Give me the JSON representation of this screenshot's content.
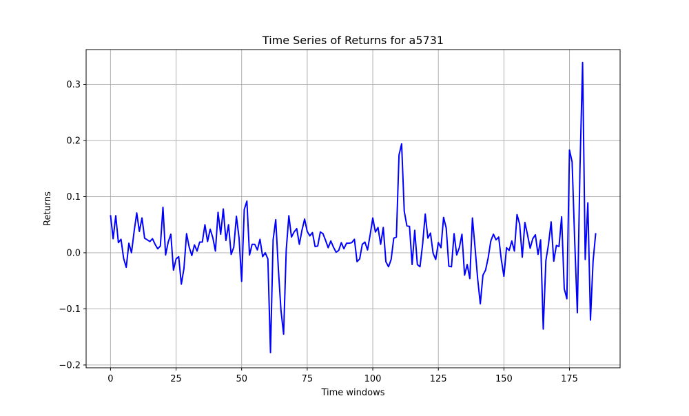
{
  "chart_data": {
    "type": "line",
    "title": "Time Series of Returns for a5731",
    "xlabel": "Time windows",
    "ylabel": "Returns",
    "xlim": [
      -9.3,
      194.3
    ],
    "ylim": [
      -0.205,
      0.362
    ],
    "grid": true,
    "legend": "none",
    "line_color": "#0000ff",
    "x_ticks": [
      0,
      25,
      50,
      75,
      100,
      125,
      150,
      175
    ],
    "y_ticks": [
      -0.2,
      -0.1,
      0.0,
      0.1,
      0.2,
      0.3
    ],
    "x_tick_labels": [
      "0",
      "25",
      "50",
      "75",
      "100",
      "125",
      "150",
      "175"
    ],
    "y_tick_labels": [
      "−0.2",
      "−0.1",
      "0.0",
      "0.1",
      "0.2",
      "0.3"
    ],
    "series": [
      {
        "x_start": 0,
        "values": [
          0.067,
          0.025,
          0.066,
          0.018,
          0.024,
          -0.01,
          -0.026,
          0.017,
          0.0,
          0.038,
          0.071,
          0.038,
          0.062,
          0.026,
          0.023,
          0.02,
          0.025,
          0.015,
          0.007,
          0.012,
          0.081,
          -0.004,
          0.019,
          0.033,
          -0.031,
          -0.011,
          -0.007,
          -0.056,
          -0.028,
          0.034,
          0.01,
          -0.005,
          0.014,
          0.003,
          0.019,
          0.019,
          0.05,
          0.02,
          0.042,
          0.027,
          0.003,
          0.072,
          0.033,
          0.078,
          0.022,
          0.05,
          -0.003,
          0.01,
          0.065,
          0.027,
          -0.051,
          0.077,
          0.092,
          -0.004,
          0.015,
          0.015,
          0.005,
          0.024,
          -0.007,
          0.0,
          -0.011,
          -0.178,
          0.023,
          0.059,
          -0.029,
          -0.103,
          -0.145,
          0.005,
          0.066,
          0.028,
          0.037,
          0.043,
          0.015,
          0.04,
          0.06,
          0.038,
          0.03,
          0.036,
          0.011,
          0.012,
          0.037,
          0.034,
          0.022,
          0.009,
          0.021,
          0.01,
          0.001,
          0.004,
          0.018,
          0.007,
          0.017,
          0.017,
          0.018,
          0.024,
          -0.016,
          -0.011,
          0.015,
          0.019,
          0.005,
          0.032,
          0.062,
          0.037,
          0.045,
          0.015,
          0.045,
          -0.016,
          -0.025,
          -0.012,
          0.026,
          0.028,
          0.174,
          0.194,
          0.074,
          0.048,
          0.047,
          -0.021,
          0.04,
          -0.021,
          -0.025,
          0.015,
          0.069,
          0.026,
          0.035,
          -0.001,
          -0.012,
          0.018,
          0.009,
          0.063,
          0.044,
          -0.024,
          -0.025,
          0.034,
          -0.004,
          0.009,
          0.033,
          -0.04,
          -0.021,
          -0.046,
          0.062,
          0.009,
          -0.047,
          -0.091,
          -0.04,
          -0.031,
          -0.009,
          0.021,
          0.033,
          0.023,
          0.028,
          -0.012,
          -0.042,
          0.009,
          0.004,
          0.021,
          0.003,
          0.068,
          0.051,
          -0.008,
          0.054,
          0.032,
          0.008,
          0.025,
          0.032,
          -0.003,
          0.023,
          -0.136,
          -0.014,
          0.015,
          0.055,
          -0.015,
          0.013,
          0.011,
          0.064,
          -0.064,
          -0.082,
          0.183,
          0.162,
          0.02,
          -0.107,
          0.15,
          0.339,
          -0.012,
          0.089,
          -0.12,
          -0.015,
          0.035
        ]
      }
    ]
  }
}
